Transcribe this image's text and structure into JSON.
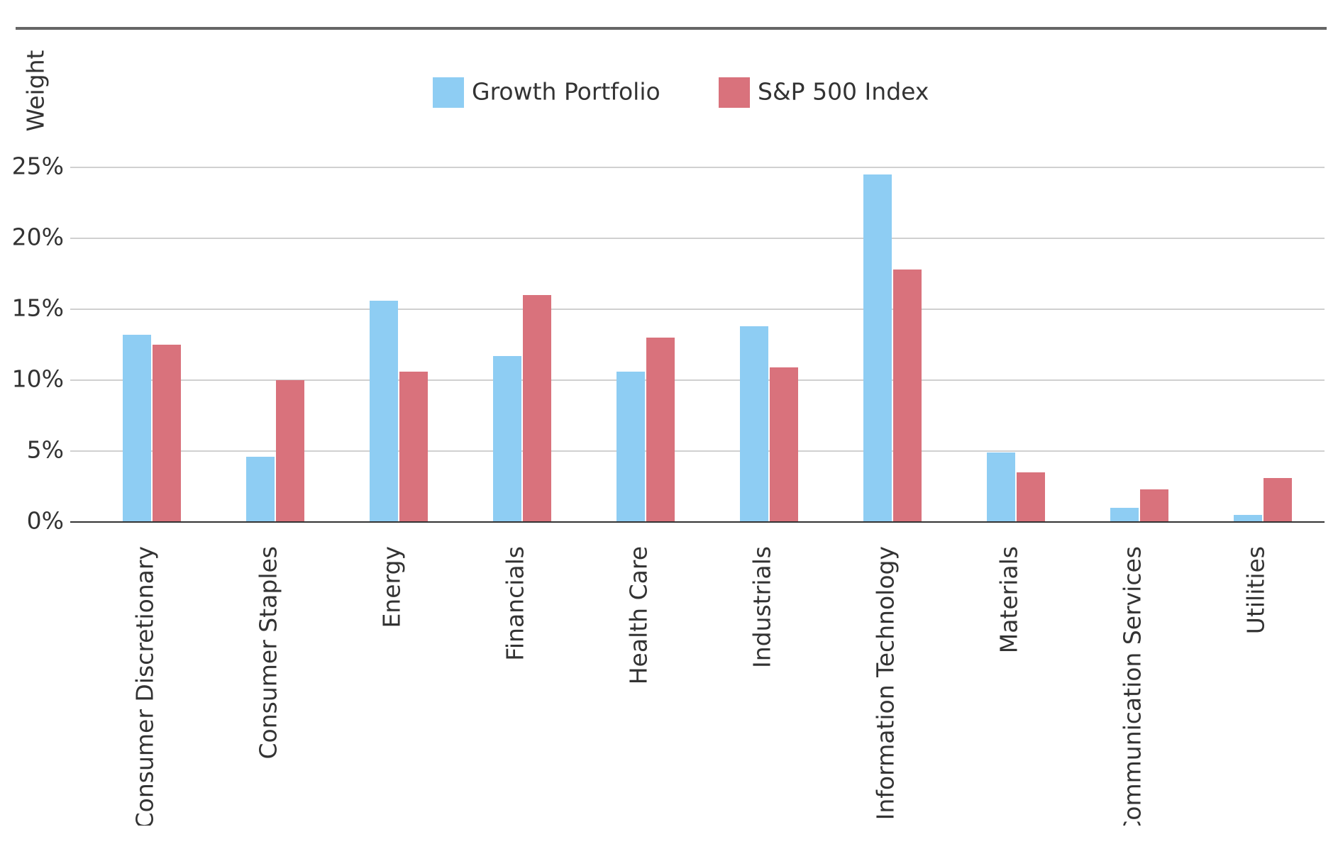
{
  "chart_data": {
    "type": "bar",
    "y_label": "Weight",
    "categories": [
      "Consumer Discretionary",
      "Consumer Staples",
      "Energy",
      "Financials",
      "Health Care",
      "Industrials",
      "Information Technology",
      "Materials",
      "Communication Services",
      "Utilities"
    ],
    "series": [
      {
        "name": "Growth Portfolio",
        "color": "#8ecdf3",
        "values": [
          13.2,
          4.6,
          15.6,
          11.7,
          10.6,
          13.8,
          24.5,
          4.9,
          1.0,
          0.5
        ]
      },
      {
        "name": "S&P 500 Index",
        "color": "#d9727c",
        "values": [
          12.5,
          10.0,
          10.6,
          16.0,
          13.0,
          10.9,
          17.8,
          3.5,
          2.3,
          3.1
        ]
      }
    ],
    "ylim": [
      0,
      25
    ],
    "yticks": [
      {
        "value": 0,
        "label": "0%"
      },
      {
        "value": 5,
        "label": "5%"
      },
      {
        "value": 10,
        "label": "10%"
      },
      {
        "value": 15,
        "label": "15%"
      },
      {
        "value": 20,
        "label": "20%"
      },
      {
        "value": 25,
        "label": "25%"
      }
    ],
    "grid": true,
    "legend": "top"
  }
}
